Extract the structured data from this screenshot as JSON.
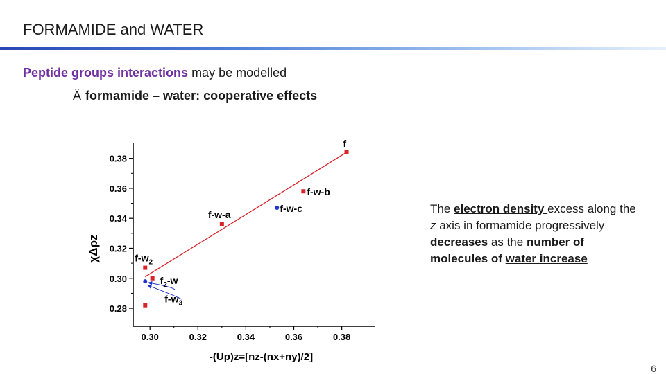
{
  "slide": {
    "title": "FORMAMIDE and WATER",
    "line1_accent": "Peptide groups interactions",
    "line1_rest": "may be modelled",
    "line2_arrow": "Ä",
    "line2_text": "formamide – water: cooperative effects",
    "page_number": "6"
  },
  "note": {
    "t1": "The ",
    "t2": "electron density ",
    "t3": "excess along the ",
    "t4": "z",
    "t5": " axis in formamide progressively ",
    "t6": "decreases",
    "t7": " as the ",
    "t8": "number of molecules of ",
    "t9": "water increase"
  },
  "chart_data": {
    "type": "scatter",
    "xlabel": "-(Up)z=[nz-(nx+ny)/2]",
    "ylabel": "χΔρz",
    "xlim": [
      0.293,
      0.394
    ],
    "ylim": [
      0.268,
      0.39
    ],
    "x_ticks": [
      0.3,
      0.32,
      0.34,
      0.36,
      0.38
    ],
    "x_tick_labels": [
      "0.30",
      "0.32",
      "0.34",
      "0.36",
      "0.38"
    ],
    "y_ticks": [
      0.28,
      0.3,
      0.32,
      0.34,
      0.36,
      0.38
    ],
    "y_tick_labels": [
      "0.28",
      "0.30",
      "0.32",
      "0.34",
      "0.36",
      "0.38"
    ],
    "colors": {
      "red": "#d8232a",
      "blue": "#2233cc"
    },
    "points": [
      {
        "label": "f",
        "x": 0.382,
        "y": 0.384,
        "color": "red"
      },
      {
        "label": "f-w-b",
        "x": 0.364,
        "y": 0.358,
        "color": "red"
      },
      {
        "label": "f-w-c",
        "x": 0.353,
        "y": 0.347,
        "color": "blue"
      },
      {
        "label": "f-w-a",
        "x": 0.33,
        "y": 0.336,
        "color": "red"
      },
      {
        "label": "f-w2",
        "label_base": "f-w",
        "label_sub": "2",
        "x": 0.298,
        "y": 0.307,
        "color": "red"
      },
      {
        "label": "f2-w",
        "label_base": "f",
        "label_sub": "2",
        "label_tail": "-w",
        "x": 0.301,
        "y": 0.3,
        "color": "red"
      },
      {
        "label": "",
        "x": 0.298,
        "y": 0.298,
        "color": "blue"
      },
      {
        "label": "f-w3",
        "label_base": "f-w",
        "label_sub": "3",
        "x": 0.298,
        "y": 0.282,
        "color": "red"
      }
    ],
    "fit_line": {
      "from": [
        0.298,
        0.301
      ],
      "to": [
        0.382,
        0.384
      ]
    }
  }
}
